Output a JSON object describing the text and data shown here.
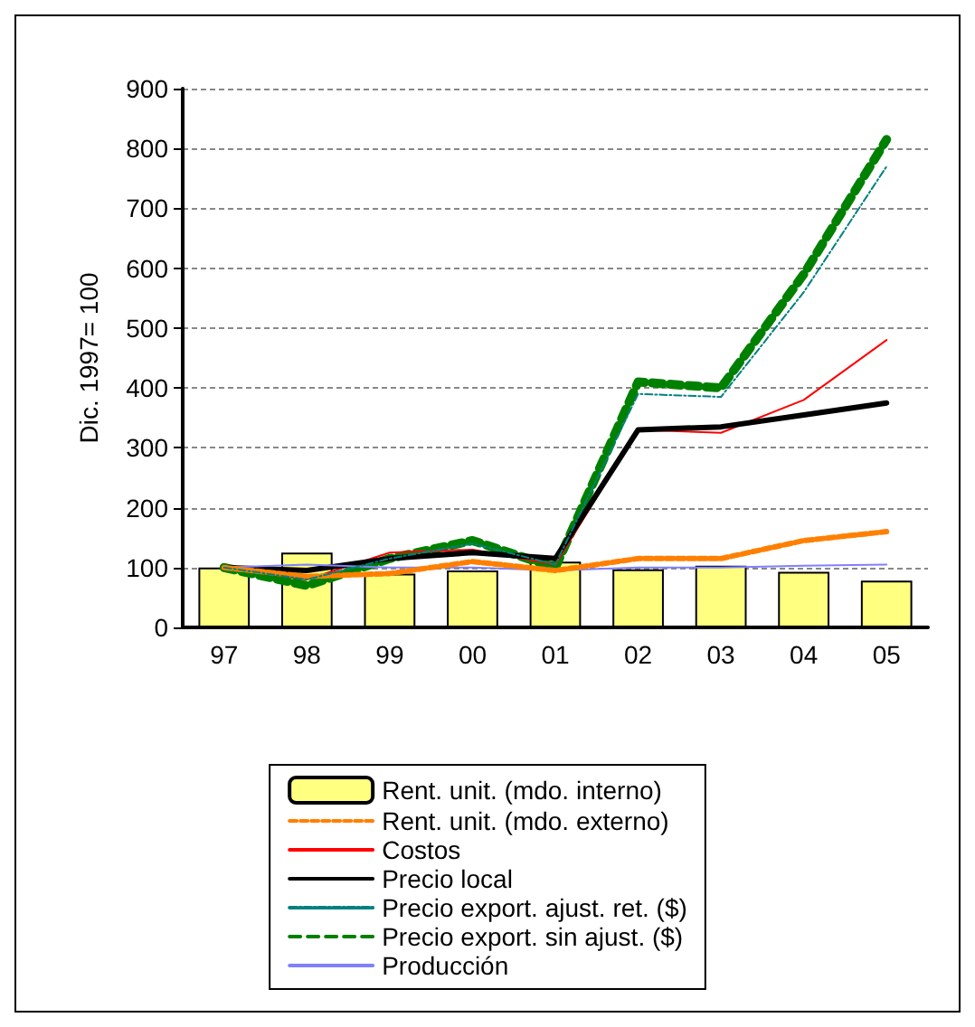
{
  "chart_data": {
    "type": "line",
    "ylabel": "Dic. 1997= 100",
    "categories": [
      "97",
      "98",
      "99",
      "00",
      "01",
      "02",
      "03",
      "04",
      "05"
    ],
    "ylim": [
      0,
      900
    ],
    "yticks": [
      0,
      100,
      200,
      300,
      400,
      500,
      600,
      700,
      800,
      900
    ],
    "grid": "y",
    "legend": "bottom",
    "marker": "none",
    "series": [
      {
        "name": "Rent. unit. (mdo. interno)",
        "type": "bar",
        "color": "#ffff80",
        "values": [
          100,
          125,
          90,
          95,
          110,
          97,
          103,
          93,
          78
        ]
      },
      {
        "name": "Rent. unit. (mdo. externo)",
        "color": "#ff8000",
        "line_style": "dashed",
        "values": [
          100,
          85,
          90,
          110,
          95,
          115,
          115,
          145,
          160
        ]
      },
      {
        "name": "Costos",
        "color": "#ff0000",
        "line_style": "solid",
        "values": [
          100,
          80,
          125,
          130,
          105,
          330,
          325,
          380,
          480
        ]
      },
      {
        "name": "Precio local",
        "color": "#000000",
        "line_style": "solid",
        "values": [
          100,
          95,
          115,
          125,
          115,
          330,
          335,
          355,
          375
        ]
      },
      {
        "name": "Precio export. ajust. ret. ($)",
        "color": "#008080",
        "line_style": "dashed",
        "values": [
          100,
          80,
          115,
          140,
          105,
          390,
          385,
          560,
          770
        ]
      },
      {
        "name": "Precio export. sin ajust. ($)",
        "color": "#008000",
        "line_style": "dashed",
        "values": [
          100,
          70,
          115,
          145,
          100,
          410,
          400,
          590,
          815
        ]
      },
      {
        "name": "Producción",
        "color": "#8080ff",
        "line_style": "solid",
        "values": [
          100,
          105,
          100,
          100,
          95,
          100,
          100,
          103,
          105
        ]
      }
    ]
  }
}
